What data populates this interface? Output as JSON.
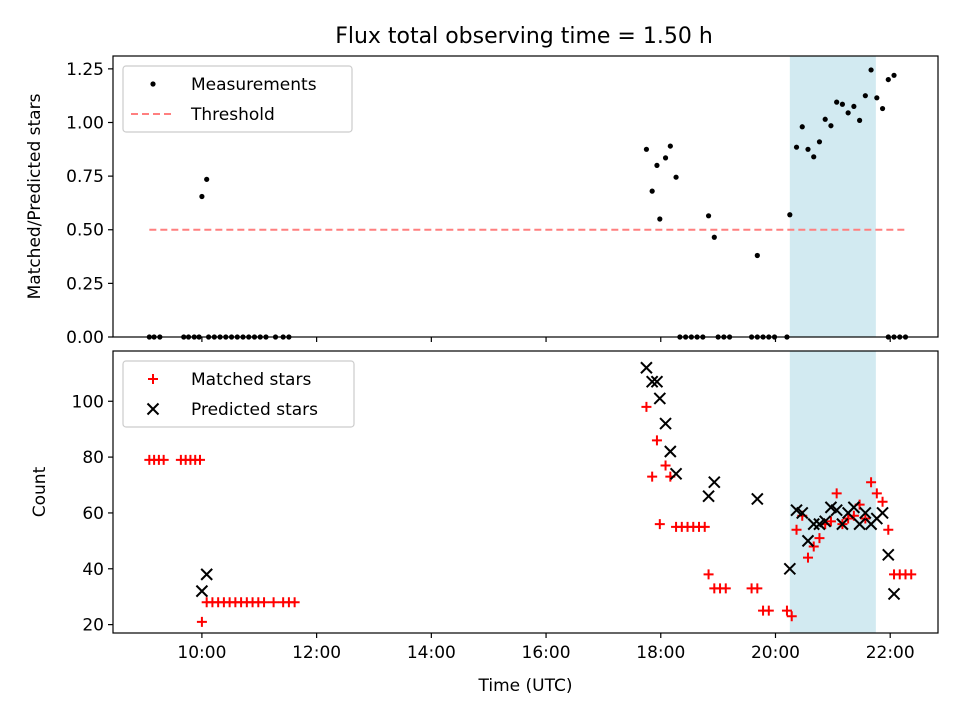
{
  "chart_data": [
    {
      "type": "scatter",
      "title": "Flux total observing time = 1.50 h",
      "xlabel": "",
      "ylabel": "Matched/Predicted stars",
      "xlim": [
        "08:27",
        "22:50"
      ],
      "ylim": [
        0,
        1.31
      ],
      "yticks": [
        0.0,
        0.25,
        0.5,
        0.75,
        1.0,
        1.25
      ],
      "ytick_labels": [
        "0.00",
        "0.25",
        "0.50",
        "0.75",
        "1.00",
        "1.25"
      ],
      "highlight_span": [
        "20:15",
        "21:45"
      ],
      "legend_position": "upper left",
      "series": [
        {
          "name": "Measurements",
          "marker": "dot",
          "color": "#000000",
          "points": [
            [
              "09:05",
              0
            ],
            [
              "09:10",
              0
            ],
            [
              "09:16",
              0
            ],
            [
              "09:41",
              0
            ],
            [
              "09:46",
              0
            ],
            [
              "09:52",
              0
            ],
            [
              "09:57",
              0
            ],
            [
              "10:00",
              0.655
            ],
            [
              "10:05",
              0.735
            ],
            [
              "10:07",
              0
            ],
            [
              "10:13",
              0
            ],
            [
              "10:19",
              0
            ],
            [
              "10:25",
              0
            ],
            [
              "10:31",
              0
            ],
            [
              "10:37",
              0
            ],
            [
              "10:43",
              0
            ],
            [
              "10:49",
              0
            ],
            [
              "10:55",
              0
            ],
            [
              "11:01",
              0
            ],
            [
              "11:07",
              0
            ],
            [
              "11:17",
              0
            ],
            [
              "11:25",
              0
            ],
            [
              "11:31",
              0
            ],
            [
              "17:45",
              0.875
            ],
            [
              "17:51",
              0.68
            ],
            [
              "17:56",
              0.8
            ],
            [
              "17:59",
              0.55
            ],
            [
              "18:05",
              0.835
            ],
            [
              "18:10",
              0.89
            ],
            [
              "18:16",
              0.745
            ],
            [
              "18:20",
              0
            ],
            [
              "18:26",
              0
            ],
            [
              "18:32",
              0
            ],
            [
              "18:38",
              0
            ],
            [
              "18:44",
              0
            ],
            [
              "18:50",
              0.565
            ],
            [
              "18:56",
              0.465
            ],
            [
              "19:00",
              0
            ],
            [
              "19:06",
              0
            ],
            [
              "19:12",
              0
            ],
            [
              "19:35",
              0
            ],
            [
              "19:41",
              0
            ],
            [
              "19:47",
              0
            ],
            [
              "19:53",
              0
            ],
            [
              "19:59",
              0
            ],
            [
              "19:41",
              0.38
            ],
            [
              "20:12",
              0
            ],
            [
              "20:15",
              0.57
            ],
            [
              "20:22",
              0.885
            ],
            [
              "20:28",
              0.98
            ],
            [
              "20:34",
              0.875
            ],
            [
              "20:40",
              0.84
            ],
            [
              "20:46",
              0.91
            ],
            [
              "20:52",
              1.015
            ],
            [
              "20:58",
              0.985
            ],
            [
              "21:04",
              1.095
            ],
            [
              "21:10",
              1.085
            ],
            [
              "21:16",
              1.045
            ],
            [
              "21:22",
              1.075
            ],
            [
              "21:28",
              1.01
            ],
            [
              "21:34",
              1.125
            ],
            [
              "21:40",
              1.245
            ],
            [
              "21:46",
              1.115
            ],
            [
              "21:52",
              1.065
            ],
            [
              "21:58",
              1.2
            ],
            [
              "22:04",
              1.22
            ],
            [
              "21:58",
              0
            ],
            [
              "22:04",
              0
            ],
            [
              "22:10",
              0
            ],
            [
              "22:16",
              0
            ]
          ]
        },
        {
          "name": "Threshold",
          "style": "dashed",
          "color": "#ff7f7f",
          "points": [
            [
              "09:05",
              0.5
            ],
            [
              "22:15",
              0.5
            ]
          ]
        }
      ]
    },
    {
      "type": "scatter",
      "xlabel": "Time (UTC)",
      "ylabel": "Count",
      "xlim": [
        "08:27",
        "22:50"
      ],
      "ylim": [
        17,
        118
      ],
      "xticks": [
        "10:00",
        "12:00",
        "14:00",
        "16:00",
        "18:00",
        "20:00",
        "22:00"
      ],
      "yticks": [
        20,
        40,
        60,
        80,
        100
      ],
      "highlight_span": [
        "20:15",
        "21:45"
      ],
      "legend_position": "upper left",
      "series": [
        {
          "name": "Matched stars",
          "marker": "plus",
          "color": "#ff0000",
          "points": [
            [
              "09:05",
              79
            ],
            [
              "09:10",
              79
            ],
            [
              "09:15",
              79
            ],
            [
              "09:20",
              79
            ],
            [
              "09:38",
              79
            ],
            [
              "09:43",
              79
            ],
            [
              "09:48",
              79
            ],
            [
              "09:53",
              79
            ],
            [
              "09:58",
              79
            ],
            [
              "10:00",
              21
            ],
            [
              "10:05",
              28
            ],
            [
              "10:11",
              28
            ],
            [
              "10:17",
              28
            ],
            [
              "10:23",
              28
            ],
            [
              "10:29",
              28
            ],
            [
              "10:35",
              28
            ],
            [
              "10:41",
              28
            ],
            [
              "10:47",
              28
            ],
            [
              "10:53",
              28
            ],
            [
              "10:59",
              28
            ],
            [
              "11:05",
              28
            ],
            [
              "11:15",
              28
            ],
            [
              "11:25",
              28
            ],
            [
              "11:31",
              28
            ],
            [
              "11:37",
              28
            ],
            [
              "17:45",
              98
            ],
            [
              "17:51",
              73
            ],
            [
              "17:56",
              86
            ],
            [
              "17:59",
              56
            ],
            [
              "18:05",
              77
            ],
            [
              "18:10",
              73
            ],
            [
              "18:16",
              55
            ],
            [
              "18:22",
              55
            ],
            [
              "18:28",
              55
            ],
            [
              "18:34",
              55
            ],
            [
              "18:40",
              55
            ],
            [
              "18:46",
              55
            ],
            [
              "18:50",
              38
            ],
            [
              "18:56",
              33
            ],
            [
              "19:02",
              33
            ],
            [
              "19:08",
              33
            ],
            [
              "19:35",
              33
            ],
            [
              "19:41",
              33
            ],
            [
              "19:47",
              25
            ],
            [
              "19:53",
              25
            ],
            [
              "20:12",
              25
            ],
            [
              "20:17",
              23
            ],
            [
              "20:22",
              54
            ],
            [
              "20:28",
              59
            ],
            [
              "20:34",
              44
            ],
            [
              "20:40",
              48
            ],
            [
              "20:46",
              51
            ],
            [
              "20:52",
              56
            ],
            [
              "20:58",
              57
            ],
            [
              "21:04",
              67
            ],
            [
              "21:10",
              56
            ],
            [
              "21:16",
              58
            ],
            [
              "21:22",
              59
            ],
            [
              "21:28",
              63
            ],
            [
              "21:34",
              58
            ],
            [
              "21:40",
              71
            ],
            [
              "21:46",
              67
            ],
            [
              "21:52",
              64
            ],
            [
              "21:58",
              54
            ],
            [
              "22:04",
              38
            ],
            [
              "22:10",
              38
            ],
            [
              "22:16",
              38
            ],
            [
              "22:22",
              38
            ]
          ]
        },
        {
          "name": "Predicted stars",
          "marker": "x",
          "color": "#000000",
          "points": [
            [
              "10:00",
              32
            ],
            [
              "10:05",
              38
            ],
            [
              "17:45",
              112
            ],
            [
              "17:51",
              107
            ],
            [
              "17:56",
              107
            ],
            [
              "17:59",
              101
            ],
            [
              "18:05",
              92
            ],
            [
              "18:10",
              82
            ],
            [
              "18:16",
              74
            ],
            [
              "18:50",
              66
            ],
            [
              "18:56",
              71
            ],
            [
              "19:41",
              65
            ],
            [
              "20:15",
              40
            ],
            [
              "20:22",
              61
            ],
            [
              "20:28",
              60
            ],
            [
              "20:34",
              50
            ],
            [
              "20:40",
              56
            ],
            [
              "20:46",
              56
            ],
            [
              "20:52",
              57
            ],
            [
              "20:58",
              62
            ],
            [
              "21:04",
              61
            ],
            [
              "21:10",
              56
            ],
            [
              "21:16",
              60
            ],
            [
              "21:22",
              62
            ],
            [
              "21:28",
              56
            ],
            [
              "21:34",
              60
            ],
            [
              "21:40",
              56
            ],
            [
              "21:46",
              58
            ],
            [
              "21:52",
              60
            ],
            [
              "21:58",
              45
            ],
            [
              "22:04",
              31
            ]
          ]
        }
      ]
    }
  ]
}
